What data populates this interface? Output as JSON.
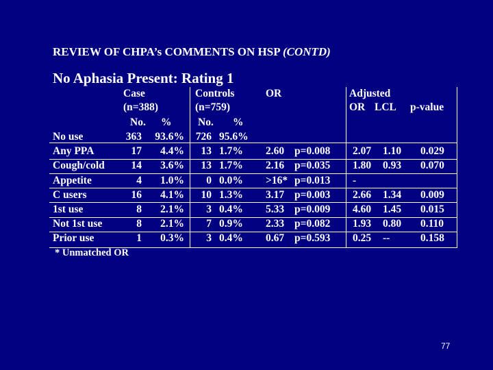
{
  "title": {
    "main": "REVIEW OF CHPA’s COMMENTS ON HSP",
    "contd": "(CONTD)"
  },
  "subtitle": "No Aphasia Present: Rating 1",
  "headers": {
    "case": "Case",
    "case_n": "(n=388)",
    "controls": "Controls",
    "controls_n": "(n=759)",
    "or": "OR",
    "adjusted": "Adjusted",
    "adj_or": "OR",
    "lcl": "LCL",
    "pvalue": "p-value",
    "no1": "No.",
    "pct1": "%",
    "no2": "No.",
    "pct2": "%"
  },
  "rows": [
    {
      "label": "No use",
      "case_no": "363",
      "case_pct": "93.6%",
      "ctrl_no": "726",
      "ctrl_pct": "95.6%",
      "or": "",
      "p": "",
      "adj_or": "",
      "lcl": "",
      "pval": ""
    },
    {
      "label": "Any PPA",
      "case_no": "17",
      "case_pct": "4.4%",
      "ctrl_no": "13",
      "ctrl_pct": "1.7%",
      "or": "2.60",
      "p": "p=0.008",
      "adj_or": "2.07",
      "lcl": "1.10",
      "pval": "0.029"
    },
    {
      "label": "Cough/cold",
      "case_no": "14",
      "case_pct": "3.6%",
      "ctrl_no": "13",
      "ctrl_pct": "1.7%",
      "or": "2.16",
      "p": "p=0.035",
      "adj_or": "1.80",
      "lcl": "0.93",
      "pval": "0.070"
    },
    {
      "label": "Appetite",
      "case_no": "4",
      "case_pct": "1.0%",
      "ctrl_no": "0",
      "ctrl_pct": "0.0%",
      "or": ">16*",
      "p": "p=0.013",
      "adj_or": "-",
      "lcl": "",
      "pval": ""
    },
    {
      "label": "C users",
      "case_no": "16",
      "case_pct": "4.1%",
      "ctrl_no": "10",
      "ctrl_pct": "1.3%",
      "or": "3.17",
      "p": "p=0.003",
      "adj_or": "2.66",
      "lcl": "1.34",
      "pval": "0.009"
    },
    {
      "label": "1st use",
      "case_no": "8",
      "case_pct": "2.1%",
      "ctrl_no": "3",
      "ctrl_pct": "0.4%",
      "or": "5.33",
      "p": "p=0.009",
      "adj_or": "4.60",
      "lcl": "1.45",
      "pval": "0.015"
    },
    {
      "label": "Not 1st use",
      "case_no": "8",
      "case_pct": "2.1%",
      "ctrl_no": "7",
      "ctrl_pct": "0.9%",
      "or": "2.33",
      "p": "p=0.082",
      "adj_or": "1.93",
      "lcl": "0.80",
      "pval": "0.110"
    },
    {
      "label": "Prior use",
      "case_no": "1",
      "case_pct": "0.3%",
      "ctrl_no": "3",
      "ctrl_pct": "0.4%",
      "or": "0.67",
      "p": "p=0.593",
      "adj_or": "0.25",
      "lcl": "--",
      "pval": "0.158"
    }
  ],
  "footnote": "* Unmatched OR",
  "page_number": "77",
  "colors": {
    "background": "#000080",
    "text": "#ffffff"
  }
}
